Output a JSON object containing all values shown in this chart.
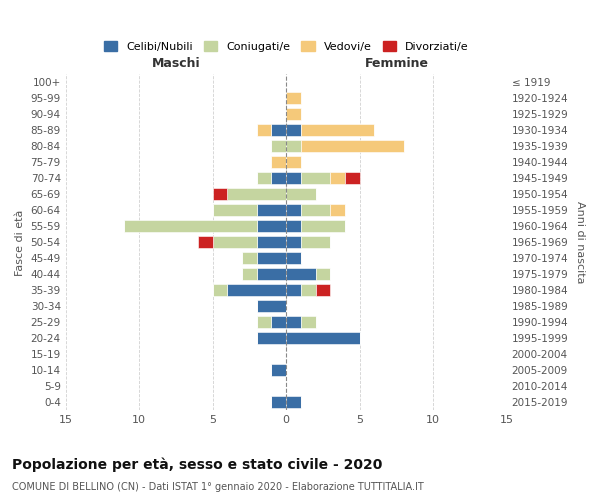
{
  "age_groups": [
    "0-4",
    "5-9",
    "10-14",
    "15-19",
    "20-24",
    "25-29",
    "30-34",
    "35-39",
    "40-44",
    "45-49",
    "50-54",
    "55-59",
    "60-64",
    "65-69",
    "70-74",
    "75-79",
    "80-84",
    "85-89",
    "90-94",
    "95-99",
    "100+"
  ],
  "birth_years": [
    "2015-2019",
    "2010-2014",
    "2005-2009",
    "2000-2004",
    "1995-1999",
    "1990-1994",
    "1985-1989",
    "1980-1984",
    "1975-1979",
    "1970-1974",
    "1965-1969",
    "1960-1964",
    "1955-1959",
    "1950-1954",
    "1945-1949",
    "1940-1944",
    "1935-1939",
    "1930-1934",
    "1925-1929",
    "1920-1924",
    "≤ 1919"
  ],
  "colors": {
    "celibi": "#3A6EA5",
    "coniugati": "#C5D5A0",
    "vedovi": "#F5C97A",
    "divorziati": "#CC2222"
  },
  "maschi": {
    "celibi": [
      1,
      0,
      1,
      0,
      2,
      1,
      2,
      4,
      2,
      2,
      2,
      2,
      2,
      0,
      1,
      0,
      0,
      1,
      0,
      0,
      0
    ],
    "coniugati": [
      0,
      0,
      0,
      0,
      0,
      1,
      0,
      1,
      1,
      1,
      3,
      9,
      3,
      4,
      1,
      0,
      1,
      0,
      0,
      0,
      0
    ],
    "vedovi": [
      0,
      0,
      0,
      0,
      0,
      0,
      0,
      0,
      0,
      0,
      0,
      0,
      0,
      0,
      0,
      1,
      0,
      1,
      0,
      0,
      0
    ],
    "divorziati": [
      0,
      0,
      0,
      0,
      0,
      0,
      0,
      0,
      0,
      0,
      1,
      0,
      0,
      1,
      0,
      0,
      0,
      0,
      0,
      0,
      0
    ]
  },
  "femmine": {
    "celibi": [
      1,
      0,
      0,
      0,
      5,
      1,
      0,
      1,
      2,
      1,
      1,
      1,
      1,
      0,
      1,
      0,
      0,
      1,
      0,
      0,
      0
    ],
    "coniugati": [
      0,
      0,
      0,
      0,
      0,
      1,
      0,
      1,
      1,
      0,
      2,
      3,
      2,
      2,
      2,
      0,
      1,
      0,
      0,
      0,
      0
    ],
    "vedovi": [
      0,
      0,
      0,
      0,
      0,
      0,
      0,
      0,
      0,
      0,
      0,
      0,
      1,
      0,
      1,
      1,
      7,
      5,
      1,
      1,
      0
    ],
    "divorziati": [
      0,
      0,
      0,
      0,
      0,
      0,
      0,
      1,
      0,
      0,
      0,
      0,
      0,
      0,
      1,
      0,
      0,
      0,
      0,
      0,
      0
    ]
  },
  "title": "Popolazione per età, sesso e stato civile - 2020",
  "subtitle": "COMUNE DI BELLINO (CN) - Dati ISTAT 1° gennaio 2020 - Elaborazione TUTTITALIA.IT",
  "xlabel_left": "Maschi",
  "xlabel_right": "Femmine",
  "ylabel_left": "Fasce di età",
  "ylabel_right": "Anni di nascita",
  "xlim": 15,
  "legend_labels": [
    "Celibi/Nubili",
    "Coniugati/e",
    "Vedovi/e",
    "Divorziati/e"
  ],
  "bg_color": "#FFFFFF",
  "grid_color": "#CCCCCC"
}
